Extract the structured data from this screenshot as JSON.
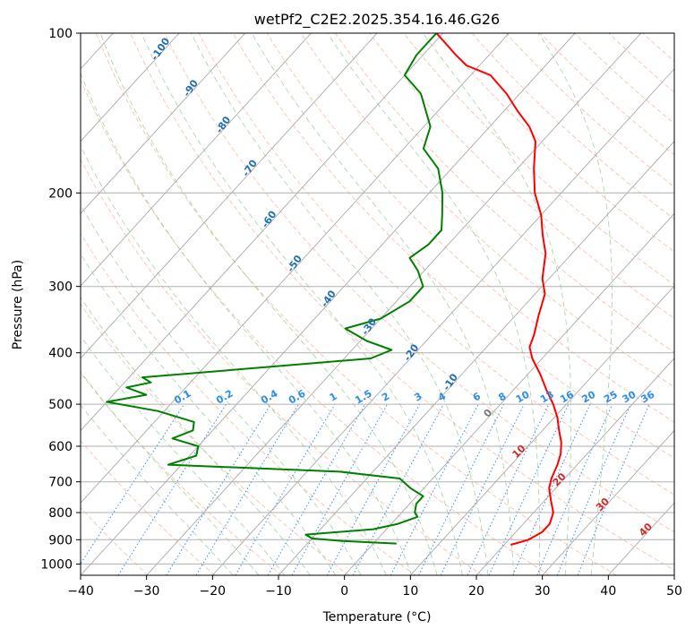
{
  "chart_data": {
    "type": "line",
    "title": "wetPf2_C2E2.2025.354.16.46.G26",
    "xlabel": "Temperature (°C)",
    "ylabel": "Pressure (hPa)",
    "xlim": [
      -40,
      50
    ],
    "ylim": [
      1050,
      100
    ],
    "y_scale": "log",
    "skew": "skew-T log-P diagram",
    "grid": true,
    "x_ticks": [
      -40,
      -30,
      -20,
      -10,
      0,
      10,
      20,
      30,
      40,
      50
    ],
    "x_tick_labels": [
      "−40",
      "−30",
      "−20",
      "−10",
      "0",
      "10",
      "20",
      "30",
      "40",
      "50"
    ],
    "y_ticks": [
      1000,
      900,
      800,
      700,
      600,
      500,
      400,
      300,
      200,
      100
    ],
    "y_tick_labels": [
      "1000",
      "900",
      "800",
      "700",
      "600",
      "500",
      "400",
      "300",
      "200",
      "100"
    ],
    "series": [
      {
        "color": "#ff0000",
        "points": [
          [
            920,
            21.0
          ],
          [
            900,
            23.0
          ],
          [
            870,
            24.0
          ],
          [
            840,
            24.0
          ],
          [
            800,
            23.0
          ],
          [
            760,
            21.0
          ],
          [
            720,
            19.0
          ],
          [
            690,
            18.0
          ],
          [
            650,
            17.0
          ],
          [
            620,
            16.0
          ],
          [
            590,
            14.5
          ],
          [
            560,
            12.5
          ],
          [
            530,
            10.5
          ],
          [
            500,
            8.0
          ],
          [
            470,
            5.0
          ],
          [
            440,
            2.0
          ],
          [
            410,
            -1.5
          ],
          [
            390,
            -3.5
          ],
          [
            370,
            -4.5
          ],
          [
            340,
            -6.5
          ],
          [
            310,
            -8.5
          ],
          [
            290,
            -11.0
          ],
          [
            260,
            -14.0
          ],
          [
            240,
            -17.0
          ],
          [
            220,
            -20.0
          ],
          [
            200,
            -24.0
          ],
          [
            180,
            -27.5
          ],
          [
            160,
            -31.0
          ],
          [
            150,
            -34.0
          ],
          [
            140,
            -38.0
          ],
          [
            130,
            -42.0
          ],
          [
            120,
            -47.0
          ],
          [
            115,
            -52.0
          ],
          [
            110,
            -55.0
          ],
          [
            100,
            -61.0
          ]
        ]
      },
      {
        "color": "#008000",
        "points": [
          [
            915,
            3.5
          ],
          [
            905,
            -5.0
          ],
          [
            895,
            -10.0
          ],
          [
            880,
            -11.5
          ],
          [
            860,
            -2.0
          ],
          [
            840,
            1.0
          ],
          [
            815,
            3.0
          ],
          [
            800,
            2.0
          ],
          [
            770,
            1.0
          ],
          [
            745,
            1.0
          ],
          [
            720,
            -2.0
          ],
          [
            690,
            -5.0
          ],
          [
            670,
            -15.0
          ],
          [
            650,
            -42.0
          ],
          [
            625,
            -39.0
          ],
          [
            600,
            -40.0
          ],
          [
            580,
            -45.0
          ],
          [
            560,
            -43.0
          ],
          [
            540,
            -44.0
          ],
          [
            515,
            -51.0
          ],
          [
            495,
            -60.0
          ],
          [
            480,
            -55.0
          ],
          [
            465,
            -59.0
          ],
          [
            455,
            -56.0
          ],
          [
            445,
            -58.0
          ],
          [
            425,
            -40.0
          ],
          [
            410,
            -26.0
          ],
          [
            395,
            -24.0
          ],
          [
            380,
            -29.0
          ],
          [
            360,
            -34.0
          ],
          [
            345,
            -30.0
          ],
          [
            320,
            -28.0
          ],
          [
            300,
            -28.0
          ],
          [
            280,
            -31.0
          ],
          [
            265,
            -34.0
          ],
          [
            250,
            -33.0
          ],
          [
            235,
            -33.0
          ],
          [
            220,
            -35.0
          ],
          [
            200,
            -38.0
          ],
          [
            180,
            -42.0
          ],
          [
            165,
            -47.0
          ],
          [
            150,
            -49.0
          ],
          [
            130,
            -55.0
          ],
          [
            120,
            -60.0
          ],
          [
            110,
            -61.0
          ],
          [
            100,
            -61.0
          ]
        ]
      }
    ],
    "dry_adiabat_labels": [
      "-100",
      "-90",
      "-80",
      "-70",
      "-60",
      "-50",
      "-40",
      "-30",
      "-20",
      "-10"
    ],
    "mixing_ratio_labels": [
      "0.1",
      "0.2",
      "0.4",
      "0.6",
      "1",
      "1.5",
      "2",
      "3",
      "4",
      "6",
      "8",
      "10",
      "13",
      "16",
      "20",
      "25",
      "30",
      "36"
    ],
    "isotherm_labels": [
      "0",
      "10",
      "20",
      "30",
      "40"
    ]
  }
}
